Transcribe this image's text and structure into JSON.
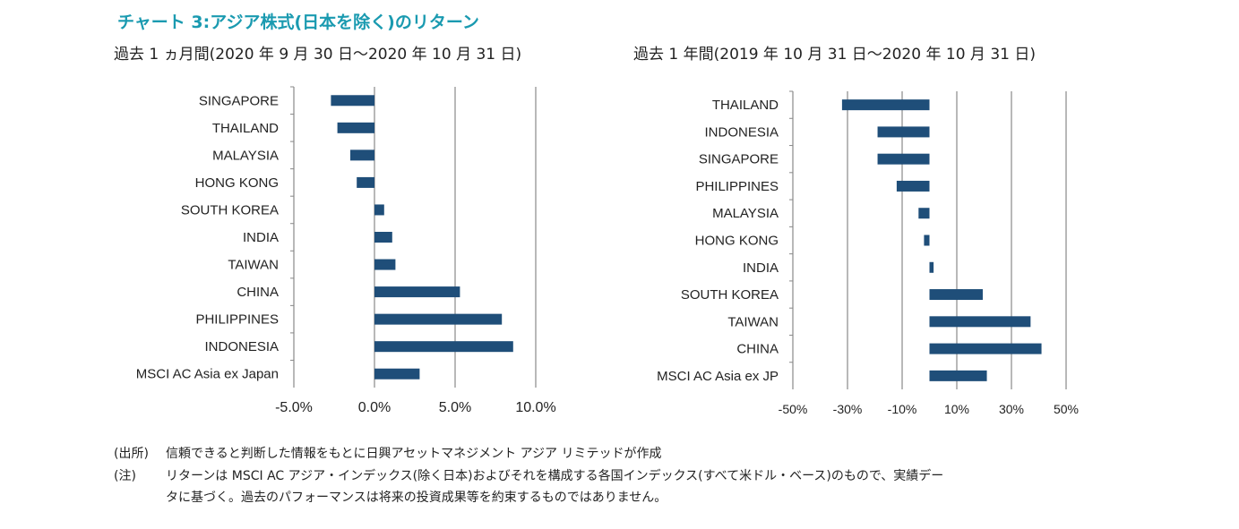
{
  "header": {
    "title": "チャート 3:アジア株式(日本を除く)のリターン",
    "subtitle_left": "過去 1 ヵ月間(2020 年 9 月 30 日〜2020 年 10 月 31 日)",
    "subtitle_right": "過去 1 年間(2019 年 10 月 31 日〜2020 年 10 月 31 日)"
  },
  "chart_data": [
    {
      "type": "bar",
      "orientation": "horizontal",
      "title": "過去 1 ヵ月間(2020 年 9 月 30 日〜2020 年 10 月 31 日)",
      "categories": [
        "SINGAPORE",
        "THAILAND",
        "MALAYSIA",
        "HONG KONG",
        "SOUTH KOREA",
        "INDIA",
        "TAIWAN",
        "CHINA",
        "PHILIPPINES",
        "INDONESIA",
        "MSCI AC Asia ex Japan"
      ],
      "values": [
        -2.7,
        -2.3,
        -1.5,
        -1.1,
        0.6,
        1.1,
        1.3,
        5.3,
        7.9,
        8.6,
        2.8
      ],
      "xlim": [
        -5,
        10
      ],
      "xticks": [
        -5,
        0,
        5,
        10
      ],
      "xtick_labels": [
        "-5.0%",
        "0.0%",
        "5.0%",
        "10.0%"
      ],
      "grid": "vertical",
      "bar_color": "#1f4e79"
    },
    {
      "type": "bar",
      "orientation": "horizontal",
      "title": "過去 1 年間(2019 年 10 月 31 日〜2020 年 10 月 31 日)",
      "categories": [
        "THAILAND",
        "INDONESIA",
        "SINGAPORE",
        "PHILIPPINES",
        "MALAYSIA",
        "HONG KONG",
        "INDIA",
        "SOUTH KOREA",
        "TAIWAN",
        "CHINA",
        "MSCI AC Asia ex JP"
      ],
      "values": [
        -32,
        -19,
        -19,
        -12,
        -4,
        -2,
        1.5,
        19.5,
        37,
        41,
        21
      ],
      "xlim": [
        -50,
        50
      ],
      "xticks": [
        -50,
        -30,
        -10,
        10,
        30,
        50
      ],
      "xtick_labels": [
        "-50%",
        "-30%",
        "-10%",
        "10%",
        "30%",
        "50%"
      ],
      "grid": "vertical",
      "bar_color": "#1f4e79"
    }
  ],
  "notes": {
    "source_label": "(出所)",
    "source_text": "信頼できると判断した情報をもとに日興アセットマネジメント アジア リミテッドが作成",
    "note_label": "(注)",
    "note_line1": "リターンは MSCI AC アジア・インデックス(除く日本)およびそれを構成する各国インデックス(すべて米ドル・ベース)のもので、実績デー",
    "note_line2": "タに基づく。過去のパフォーマンスは将来の投資成果等を約束するものではありません。"
  }
}
